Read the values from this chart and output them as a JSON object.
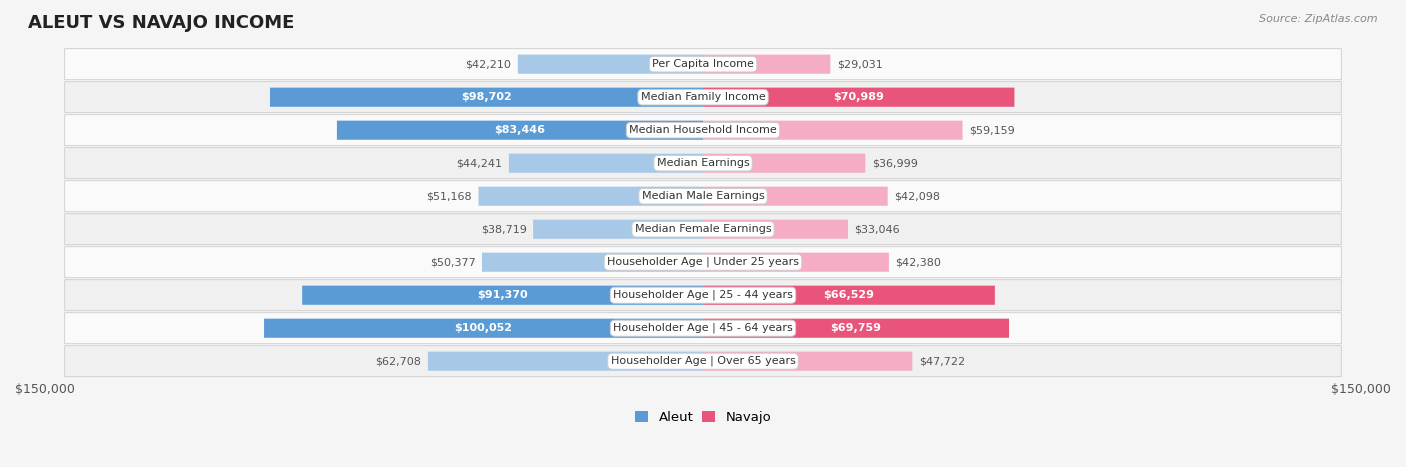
{
  "title": "ALEUT VS NAVAJO INCOME",
  "source": "Source: ZipAtlas.com",
  "categories": [
    "Per Capita Income",
    "Median Family Income",
    "Median Household Income",
    "Median Earnings",
    "Median Male Earnings",
    "Median Female Earnings",
    "Householder Age | Under 25 years",
    "Householder Age | 25 - 44 years",
    "Householder Age | 45 - 64 years",
    "Householder Age | Over 65 years"
  ],
  "aleut_values": [
    42210,
    98702,
    83446,
    44241,
    51168,
    38719,
    50377,
    91370,
    100052,
    62708
  ],
  "navajo_values": [
    29031,
    70989,
    59159,
    36999,
    42098,
    33046,
    42380,
    66529,
    69759,
    47722
  ],
  "max_value": 150000,
  "aleut_color_light": "#a8c8e8",
  "aleut_color_dark": "#5b9bd5",
  "navajo_color_light": "#f5adc6",
  "navajo_color_dark": "#e8547a",
  "label_dark_text": "#ffffff",
  "label_light_text": "#555555",
  "background_color": "#f5f5f5",
  "row_odd_color": "#f0f0f0",
  "row_even_color": "#fafafa",
  "row_border_color": "#cccccc",
  "bar_height": 0.58,
  "aleut_dark_threshold": 75000,
  "navajo_dark_threshold": 60000,
  "figsize": [
    14.06,
    4.67
  ],
  "dpi": 100,
  "title_fontsize": 13,
  "label_fontsize": 8,
  "cat_fontsize": 8,
  "tick_fontsize": 9
}
